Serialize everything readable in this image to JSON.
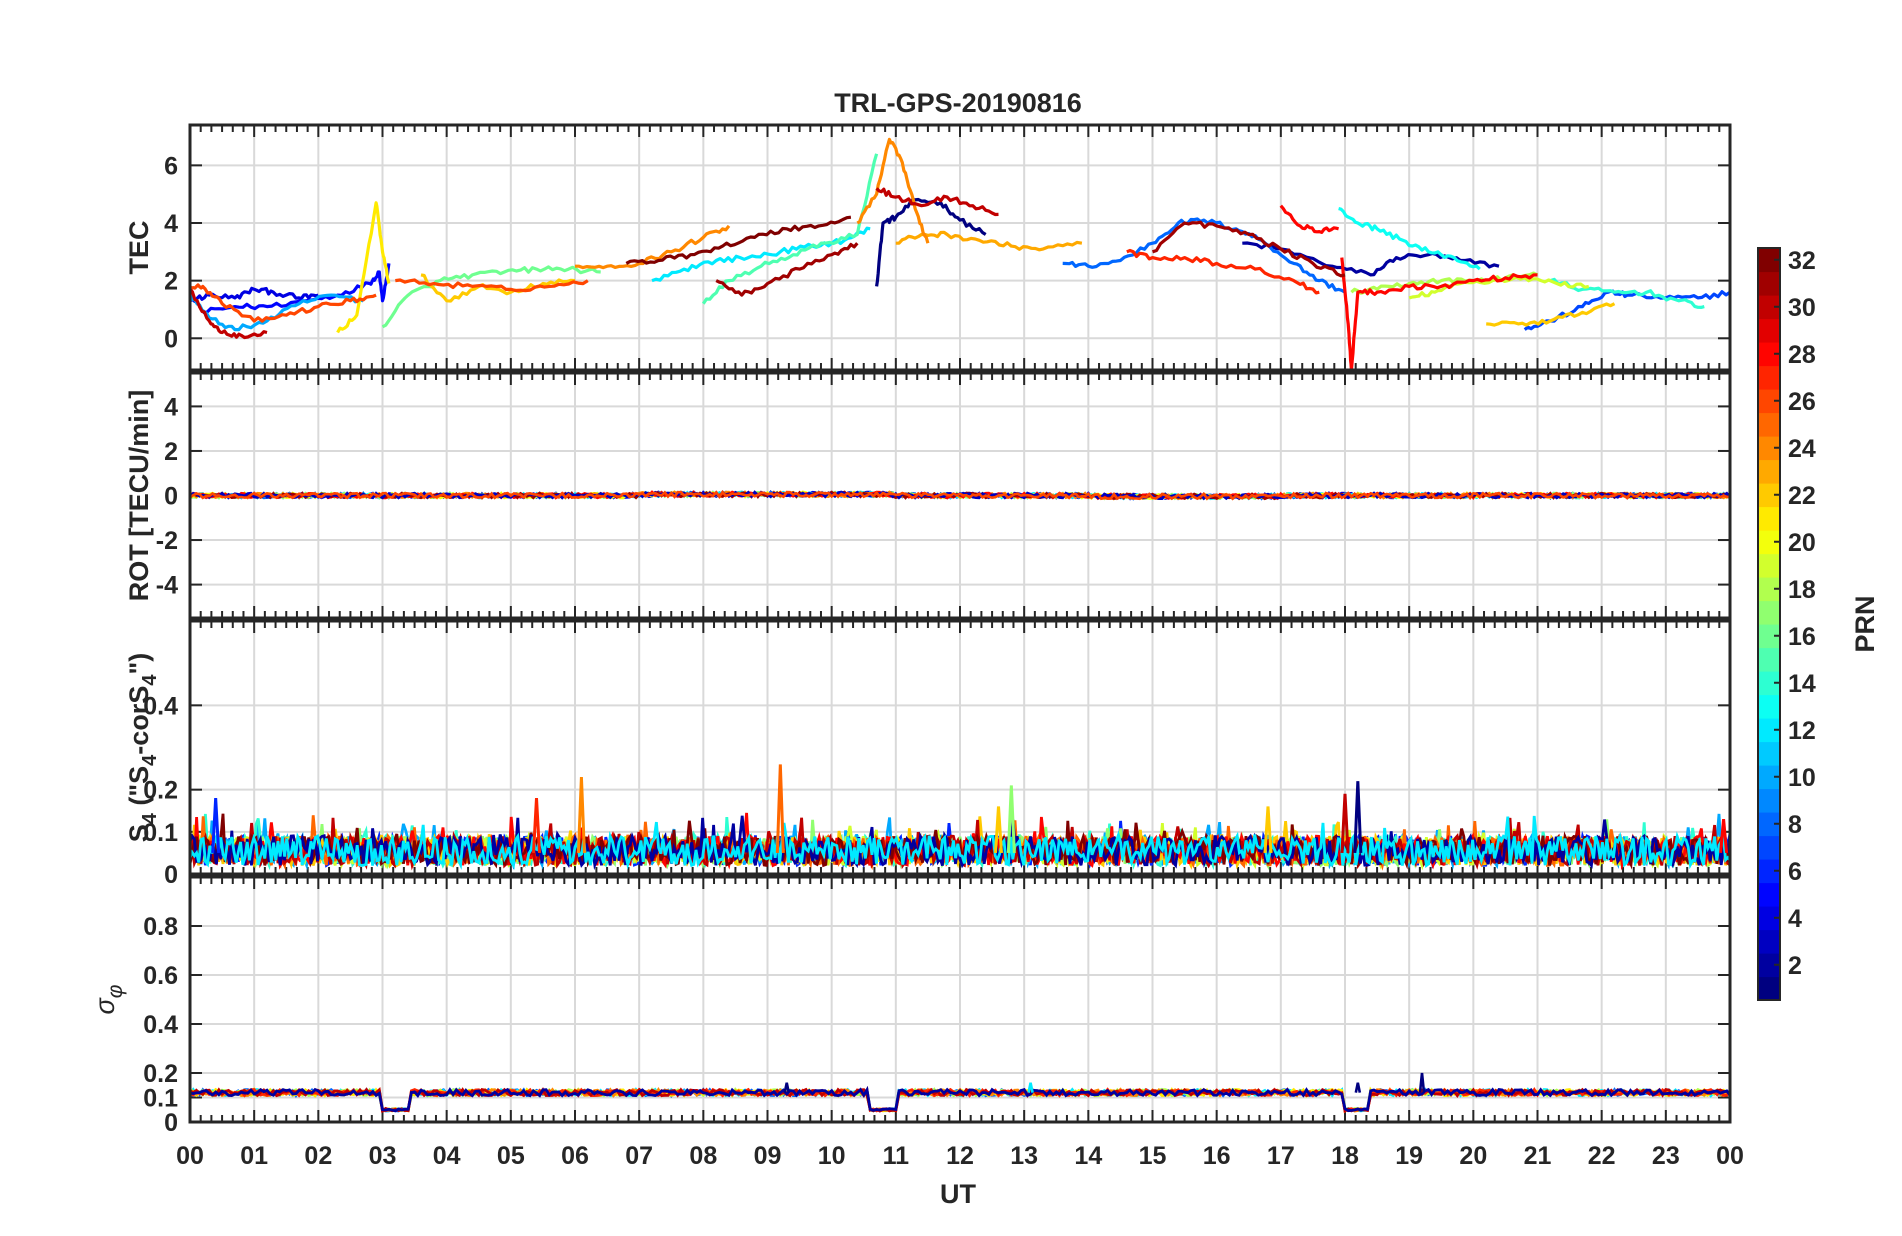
{
  "title": "TRL-GPS-20190816",
  "x_axis": {
    "label": "UT",
    "tick_labels": [
      "00",
      "01",
      "02",
      "03",
      "04",
      "05",
      "06",
      "07",
      "08",
      "09",
      "10",
      "11",
      "12",
      "13",
      "14",
      "15",
      "16",
      "17",
      "18",
      "19",
      "20",
      "21",
      "22",
      "23",
      "00"
    ]
  },
  "colorbar": {
    "label": "PRN",
    "range": [
      1,
      32
    ],
    "tick_values": [
      2,
      4,
      6,
      8,
      10,
      12,
      14,
      16,
      18,
      20,
      22,
      24,
      26,
      28,
      30,
      32
    ],
    "colormap": "jet"
  },
  "chart_data": [
    {
      "type": "line",
      "panel": "tec",
      "ylabel": "TEC",
      "ylim": [
        -1.1,
        7.4
      ],
      "yticks": [
        0,
        2,
        4,
        6
      ],
      "x_range_hours": [
        0,
        24
      ],
      "grid": true,
      "series": [
        {
          "prn": 1,
          "x": [
            10.7,
            10.8,
            11.0,
            11.3,
            11.7,
            12.0,
            12.4
          ],
          "y": [
            1.8,
            4.0,
            4.2,
            4.8,
            4.7,
            4.1,
            3.6
          ]
        },
        {
          "prn": 2,
          "x": [
            16.4,
            17.0,
            17.8,
            18.4,
            18.8,
            19.3,
            19.8,
            20.4
          ],
          "y": [
            3.3,
            3.1,
            2.5,
            2.2,
            2.8,
            2.9,
            2.7,
            2.5
          ]
        },
        {
          "prn": 4,
          "x": [
            0.0,
            0.3,
            0.7,
            1.0,
            1.3,
            1.7,
            2.0
          ],
          "y": [
            1.3,
            1.5,
            1.4,
            1.7,
            1.6,
            1.4,
            1.5
          ]
        },
        {
          "prn": 5,
          "x": [
            0.2,
            0.7,
            1.2,
            1.8,
            2.3,
            2.8,
            2.95,
            3.0,
            3.1
          ],
          "y": [
            0.9,
            1.1,
            1.1,
            1.3,
            1.5,
            1.9,
            2.3,
            1.3,
            2.6
          ]
        },
        {
          "prn": 7,
          "x": [
            20.8,
            21.2,
            21.7,
            22.1,
            22.4,
            23.0,
            23.5,
            24.0
          ],
          "y": [
            0.3,
            0.6,
            1.1,
            1.6,
            1.5,
            1.4,
            1.4,
            1.6
          ]
        },
        {
          "prn": 8,
          "x": [
            13.6,
            14.0,
            14.5,
            15.0,
            15.4,
            15.8,
            16.3,
            16.7,
            17.2,
            17.6,
            18.0
          ],
          "y": [
            2.6,
            2.5,
            2.7,
            3.3,
            4.0,
            4.1,
            3.8,
            3.4,
            2.6,
            2.0,
            1.6
          ]
        },
        {
          "prn": 10,
          "x": [
            0.0,
            0.3,
            0.7,
            1.2,
            1.7,
            2.2,
            2.7
          ],
          "y": [
            1.5,
            0.7,
            0.3,
            0.6,
            1.2,
            1.5,
            1.3
          ]
        },
        {
          "prn": 12,
          "x": [
            7.2,
            7.7,
            8.2,
            8.7,
            9.2,
            9.7,
            10.2,
            10.6
          ],
          "y": [
            2.0,
            2.4,
            2.7,
            2.8,
            3.0,
            3.2,
            3.4,
            3.8
          ]
        },
        {
          "prn": 13,
          "x": [
            17.9,
            18.2,
            18.5,
            18.9,
            19.3,
            19.7,
            20.1
          ],
          "y": [
            4.5,
            4.0,
            3.8,
            3.4,
            3.0,
            2.8,
            2.4
          ]
        },
        {
          "prn": 14,
          "x": [
            21.2,
            21.7,
            22.2,
            22.7,
            23.2,
            23.6
          ],
          "y": [
            2.0,
            1.7,
            1.6,
            1.6,
            1.3,
            1.1
          ]
        },
        {
          "prn": 15,
          "x": [
            8.0,
            8.4,
            8.9,
            9.4,
            9.9,
            10.4,
            10.7
          ],
          "y": [
            1.2,
            2.0,
            2.5,
            2.9,
            3.3,
            3.6,
            6.4
          ]
        },
        {
          "prn": 16,
          "x": [
            3.0,
            3.4,
            3.9,
            4.4,
            4.9,
            5.4,
            5.9,
            6.4
          ],
          "y": [
            0.4,
            1.5,
            2.0,
            2.2,
            2.3,
            2.4,
            2.4,
            2.3
          ]
        },
        {
          "prn": 18,
          "x": [
            18.1,
            18.5,
            19.0,
            19.5,
            20.0,
            20.5,
            21.0
          ],
          "y": [
            1.6,
            1.7,
            1.9,
            2.0,
            2.0,
            2.1,
            2.2
          ]
        },
        {
          "prn": 19,
          "x": [
            19.0,
            19.4,
            19.8,
            20.3,
            20.8,
            21.3,
            21.8
          ],
          "y": [
            1.4,
            1.6,
            1.9,
            2.0,
            2.1,
            1.9,
            1.8
          ]
        },
        {
          "prn": 21,
          "x": [
            2.3,
            2.6,
            2.9,
            3.0,
            3.1
          ],
          "y": [
            0.2,
            0.8,
            4.7,
            3.0,
            1.9
          ]
        },
        {
          "prn": 22,
          "x": [
            20.2,
            20.7,
            21.2,
            21.7,
            22.2
          ],
          "y": [
            0.5,
            0.5,
            0.6,
            0.9,
            1.2
          ]
        },
        {
          "prn": 22,
          "x": [
            3.6,
            4.0,
            4.5,
            5.0,
            5.5,
            6.0
          ],
          "y": [
            2.2,
            1.3,
            1.8,
            1.6,
            1.9,
            2.0
          ]
        },
        {
          "prn": 23,
          "x": [
            11.0,
            11.4,
            11.8,
            12.3,
            12.8,
            13.3,
            13.9
          ],
          "y": [
            3.3,
            3.6,
            3.6,
            3.4,
            3.2,
            3.1,
            3.3
          ]
        },
        {
          "prn": 24,
          "x": [
            10.4,
            10.7,
            10.9,
            11.1,
            11.3,
            11.5
          ],
          "y": [
            4.0,
            5.0,
            6.9,
            6.1,
            4.5,
            3.3
          ]
        },
        {
          "prn": 24,
          "x": [
            6.0,
            6.5,
            7.0,
            7.5,
            8.0,
            8.4
          ],
          "y": [
            2.5,
            2.5,
            2.6,
            3.0,
            3.5,
            3.9
          ]
        },
        {
          "prn": 26,
          "x": [
            0.0,
            0.2,
            0.5,
            1.0,
            1.5,
            2.0,
            2.5,
            2.9
          ],
          "y": [
            1.8,
            1.8,
            1.2,
            0.6,
            0.8,
            1.1,
            1.3,
            1.5
          ]
        },
        {
          "prn": 26,
          "x": [
            3.2,
            3.8,
            4.4,
            5.0,
            5.6,
            6.2
          ],
          "y": [
            2.0,
            1.9,
            1.8,
            1.7,
            1.8,
            2.0
          ]
        },
        {
          "prn": 27,
          "x": [
            14.6,
            15.0,
            15.5,
            16.0,
            16.6,
            17.2,
            17.6
          ],
          "y": [
            3.0,
            2.8,
            2.8,
            2.6,
            2.4,
            2.0,
            1.6
          ]
        },
        {
          "prn": 28,
          "x": [
            17.95,
            18.05,
            18.1,
            18.2,
            18.5,
            19.0,
            19.5,
            20.0,
            20.5,
            21.0
          ],
          "y": [
            2.8,
            0.5,
            -1.1,
            1.6,
            1.6,
            1.8,
            1.8,
            2.0,
            2.1,
            2.2
          ]
        },
        {
          "prn": 28,
          "x": [
            17.0,
            17.3,
            17.6,
            17.9
          ],
          "y": [
            4.6,
            3.9,
            3.7,
            3.8
          ]
        },
        {
          "prn": 30,
          "x": [
            0.0,
            0.3,
            0.5,
            0.8,
            1.2
          ],
          "y": [
            1.7,
            0.6,
            0.2,
            0.1,
            0.2
          ]
        },
        {
          "prn": 30,
          "x": [
            10.7,
            11.0,
            11.4,
            11.8,
            12.2,
            12.6
          ],
          "y": [
            5.2,
            4.9,
            4.6,
            4.9,
            4.6,
            4.3
          ]
        },
        {
          "prn": 31,
          "x": [
            8.2,
            8.6,
            9.0,
            9.5,
            10.0,
            10.4
          ],
          "y": [
            2.0,
            1.5,
            1.9,
            2.4,
            2.9,
            3.3
          ]
        },
        {
          "prn": 31,
          "x": [
            15.0,
            15.5,
            16.0,
            16.5,
            17.0,
            17.5,
            18.0
          ],
          "y": [
            3.0,
            4.0,
            3.9,
            3.6,
            3.1,
            2.6,
            2.2
          ]
        },
        {
          "prn": 32,
          "x": [
            6.8,
            7.3,
            7.8,
            8.3,
            8.8,
            9.3,
            9.8,
            10.3
          ],
          "y": [
            2.6,
            2.7,
            2.9,
            3.2,
            3.5,
            3.8,
            3.9,
            4.2
          ]
        }
      ]
    },
    {
      "type": "line",
      "panel": "rot",
      "ylabel": "ROT [TECU/min]",
      "ylim": [
        -5.5,
        5.5
      ],
      "yticks": [
        -4,
        -2,
        0,
        2,
        4
      ],
      "x_range_hours": [
        0,
        24
      ],
      "grid": true,
      "value_range": [
        -0.2,
        0.2
      ],
      "baseline": 0
    },
    {
      "type": "line",
      "panel": "s4",
      "ylabel": "S₄ (\"S₄-corS₄\")",
      "ylim": [
        0,
        0.6
      ],
      "yticks": [
        0,
        0.1,
        0.2,
        0.4
      ],
      "ytick_labels": [
        "0",
        "0.1",
        "0.2",
        "0.4"
      ],
      "x_range_hours": [
        0,
        24
      ],
      "grid": true,
      "typical_range": [
        0.02,
        0.12
      ],
      "peaks": [
        {
          "x": 0.4,
          "y": 0.18,
          "prn": 6
        },
        {
          "x": 5.4,
          "y": 0.18,
          "prn": 27
        },
        {
          "x": 6.1,
          "y": 0.23,
          "prn": 24
        },
        {
          "x": 9.2,
          "y": 0.26,
          "prn": 25
        },
        {
          "x": 12.6,
          "y": 0.16,
          "prn": 22
        },
        {
          "x": 12.8,
          "y": 0.21,
          "prn": 17
        },
        {
          "x": 16.8,
          "y": 0.16,
          "prn": 22
        },
        {
          "x": 18.0,
          "y": 0.19,
          "prn": 30
        },
        {
          "x": 18.2,
          "y": 0.22,
          "prn": 1
        },
        {
          "x": 23.9,
          "y": 0.13,
          "prn": 28
        }
      ]
    },
    {
      "type": "line",
      "panel": "sigma_phi",
      "ylabel": "σ_φ",
      "ylim": [
        0,
        1
      ],
      "yticks": [
        0,
        0.1,
        0.2,
        0.4,
        0.6,
        0.8
      ],
      "ytick_labels": [
        "0",
        "0.1",
        "0.2",
        "0.4",
        "0.6",
        "0.8"
      ],
      "x_range_hours": [
        0,
        24
      ],
      "grid": true,
      "baseline": 0.12,
      "dips": [
        {
          "x": [
            3.0,
            3.4
          ],
          "y": 0.05,
          "prn": 20
        },
        {
          "x": [
            10.6,
            11.0
          ],
          "y": 0.05,
          "prn": 28
        },
        {
          "x": [
            18.0,
            18.4
          ],
          "y": 0.05,
          "prn": 28
        }
      ],
      "peaks": [
        {
          "x": 9.3,
          "y": 0.16,
          "prn": 1
        },
        {
          "x": 18.2,
          "y": 0.16,
          "prn": 1
        },
        {
          "x": 19.2,
          "y": 0.2,
          "prn": 1
        },
        {
          "x": 13.1,
          "y": 0.16,
          "prn": 12
        }
      ]
    }
  ]
}
